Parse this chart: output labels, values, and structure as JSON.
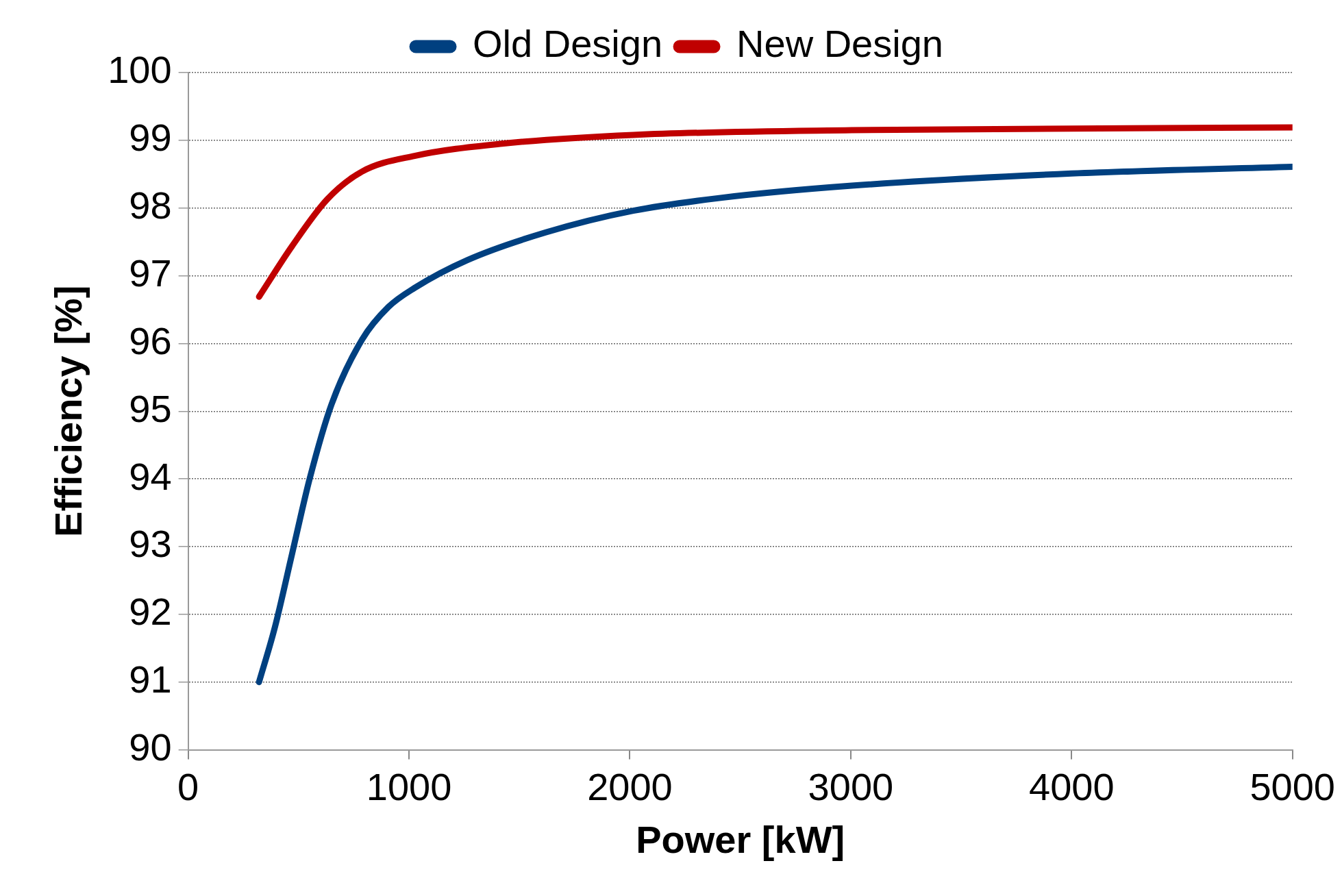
{
  "chart_data": {
    "type": "line",
    "xlabel": "Power [kW]",
    "ylabel": "Efficiency [%]",
    "xlim": [
      0,
      5000
    ],
    "xticks": [
      0,
      1000,
      2000,
      3000,
      4000,
      5000
    ],
    "ylim": [
      90,
      100
    ],
    "yticks": [
      90,
      91,
      92,
      93,
      94,
      95,
      96,
      97,
      98,
      99,
      100
    ],
    "grid": "y",
    "legend": "top",
    "marker": "none",
    "line_style": "solid",
    "series": [
      {
        "name": "Old Design",
        "color": "#004080",
        "x": [
          321,
          392,
          471,
          550,
          649,
          788,
          907,
          1025,
          1263,
          1619,
          2015,
          2411,
          3005,
          4000,
          5000
        ],
        "values": [
          91.0,
          91.8,
          92.9,
          94.0,
          95.1,
          96.06,
          96.54,
          96.82,
          97.23,
          97.64,
          97.96,
          98.15,
          98.33,
          98.51,
          98.61
        ]
      },
      {
        "name": "New Design",
        "color": "#c00000",
        "x": [
          321,
          471,
          630,
          788,
          1025,
          1421,
          2015,
          3005,
          5000
        ],
        "values": [
          96.69,
          97.44,
          98.13,
          98.54,
          98.77,
          98.95,
          99.08,
          99.15,
          99.19
        ]
      }
    ]
  }
}
